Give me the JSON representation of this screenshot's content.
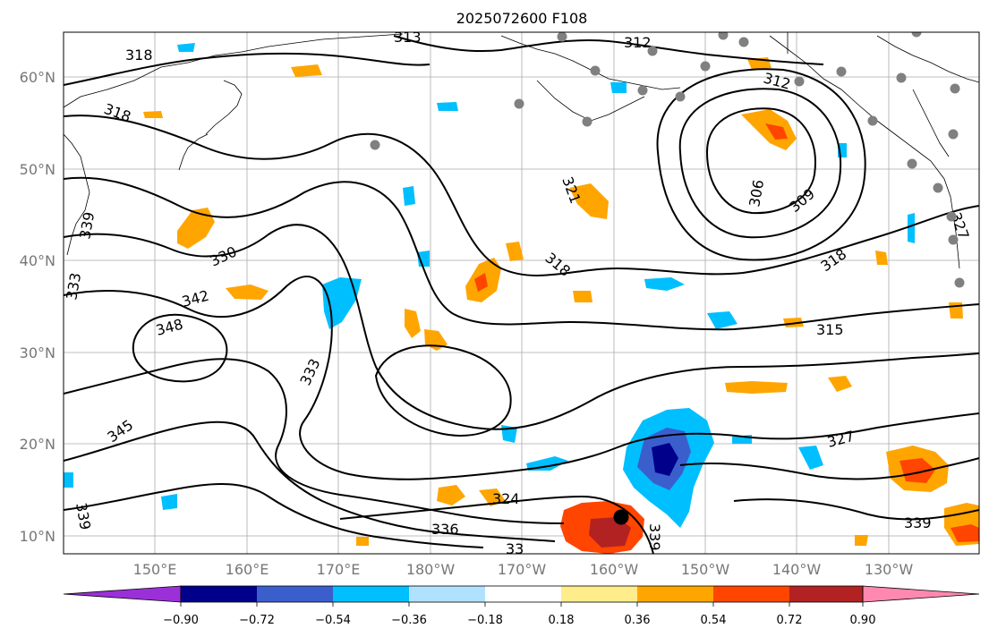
{
  "title": "2025072600 F108",
  "lat_labels": [
    "10°N",
    "20°N",
    "30°N",
    "40°N",
    "50°N",
    "60°N"
  ],
  "lon_labels": [
    "150°E",
    "160°E",
    "170°E",
    "180°W",
    "170°W",
    "160°W",
    "150°W",
    "140°W",
    "130°W"
  ],
  "colorbar": {
    "ticks": [
      "−0.90",
      "−0.72",
      "−0.54",
      "−0.36",
      "−0.18",
      "0.18",
      "0.36",
      "0.54",
      "0.72",
      "0.90"
    ],
    "colors": [
      "#9b30d9",
      "#00008b",
      "#3a5fcd",
      "#00bfff",
      "#b0e2ff",
      "#ffffff",
      "#ffec8b",
      "#ffa500",
      "#ff4500",
      "#b22222",
      "#ff88b0"
    ]
  },
  "contour_labels": [
    "318",
    "313",
    "312",
    "318",
    "312",
    "321",
    "306",
    "309",
    "339",
    "330",
    "318",
    "318",
    "342",
    "348",
    "333",
    "333",
    "315",
    "345",
    "327",
    "324",
    "336",
    "339",
    "339",
    "339",
    "33",
    "327"
  ],
  "icons": {
    "station_marker": "gray-dot-icon",
    "center_marker": "black-dot-icon"
  }
}
